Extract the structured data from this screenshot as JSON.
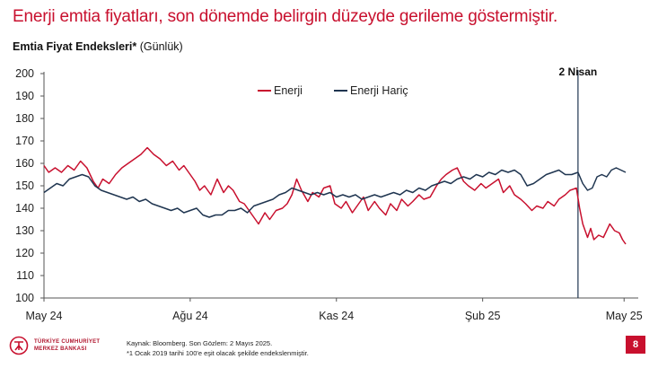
{
  "slide": {
    "title": "Enerji emtia fiyatları, son dönemde belirgin düzeyde gerileme göstermiştir.",
    "page_number": "8"
  },
  "footer": {
    "logo_line1": "TÜRKİYE CUMHURİYET",
    "logo_line2": "MERKEZ BANKASI",
    "source": "Kaynak: Bloomberg. Son Gözlem: 2 Mayıs 2025.",
    "note": "*1 Ocak 2019 tarihi 100'e eşit olacak şekilde endekslenmiştir."
  },
  "colors": {
    "brand": "#c8102e",
    "energy": "#c8102e",
    "ex_energy": "#1f3550"
  },
  "chart_data": {
    "type": "line",
    "title": "Emtia Fiyat Endeksleri*",
    "unit_label": "(Günlük)",
    "xlabel": "",
    "ylabel": "",
    "ylim": [
      100,
      200
    ],
    "yticks": [
      100,
      110,
      120,
      130,
      140,
      150,
      160,
      170,
      180,
      190,
      200
    ],
    "xlim": [
      "2024-05-01",
      "2025-05-02"
    ],
    "xticks": [
      {
        "date": "2024-05-01",
        "label": "May 24"
      },
      {
        "date": "2024-08-01",
        "label": "Ağu 24"
      },
      {
        "date": "2024-11-01",
        "label": "Kas 24"
      },
      {
        "date": "2025-02-01",
        "label": "Şub 25"
      },
      {
        "date": "2025-05-01",
        "label": "May 25"
      }
    ],
    "vline": {
      "date": "2025-04-02",
      "label": "2 Nisan"
    },
    "legend_position": "top-center",
    "grid": false,
    "series": [
      {
        "name": "Enerji",
        "color": "#c8102e",
        "points": [
          [
            "2024-05-01",
            159
          ],
          [
            "2024-05-04",
            156
          ],
          [
            "2024-05-08",
            158
          ],
          [
            "2024-05-12",
            156
          ],
          [
            "2024-05-16",
            159
          ],
          [
            "2024-05-20",
            157
          ],
          [
            "2024-05-24",
            161
          ],
          [
            "2024-05-28",
            158
          ],
          [
            "2024-06-01",
            152
          ],
          [
            "2024-06-04",
            149
          ],
          [
            "2024-06-07",
            153
          ],
          [
            "2024-06-11",
            151
          ],
          [
            "2024-06-15",
            155
          ],
          [
            "2024-06-19",
            158
          ],
          [
            "2024-06-23",
            160
          ],
          [
            "2024-06-27",
            162
          ],
          [
            "2024-07-01",
            164
          ],
          [
            "2024-07-05",
            167
          ],
          [
            "2024-07-09",
            164
          ],
          [
            "2024-07-13",
            162
          ],
          [
            "2024-07-17",
            159
          ],
          [
            "2024-07-21",
            161
          ],
          [
            "2024-07-25",
            157
          ],
          [
            "2024-07-28",
            159
          ],
          [
            "2024-08-01",
            155
          ],
          [
            "2024-08-04",
            152
          ],
          [
            "2024-08-07",
            148
          ],
          [
            "2024-08-10",
            150
          ],
          [
            "2024-08-14",
            146
          ],
          [
            "2024-08-18",
            153
          ],
          [
            "2024-08-22",
            147
          ],
          [
            "2024-08-25",
            150
          ],
          [
            "2024-08-28",
            148
          ],
          [
            "2024-09-01",
            143
          ],
          [
            "2024-09-04",
            142
          ],
          [
            "2024-09-07",
            139
          ],
          [
            "2024-09-10",
            136
          ],
          [
            "2024-09-13",
            133
          ],
          [
            "2024-09-17",
            138
          ],
          [
            "2024-09-20",
            135
          ],
          [
            "2024-09-24",
            139
          ],
          [
            "2024-09-28",
            140
          ],
          [
            "2024-10-01",
            142
          ],
          [
            "2024-10-04",
            146
          ],
          [
            "2024-10-07",
            153
          ],
          [
            "2024-10-10",
            148
          ],
          [
            "2024-10-14",
            143
          ],
          [
            "2024-10-17",
            147
          ],
          [
            "2024-10-21",
            145
          ],
          [
            "2024-10-24",
            149
          ],
          [
            "2024-10-28",
            150
          ],
          [
            "2024-10-31",
            142
          ],
          [
            "2024-11-04",
            140
          ],
          [
            "2024-11-07",
            143
          ],
          [
            "2024-11-11",
            138
          ],
          [
            "2024-11-14",
            141
          ],
          [
            "2024-11-18",
            145
          ],
          [
            "2024-11-21",
            139
          ],
          [
            "2024-11-25",
            143
          ],
          [
            "2024-11-28",
            140
          ],
          [
            "2024-12-02",
            137
          ],
          [
            "2024-12-05",
            142
          ],
          [
            "2024-12-09",
            139
          ],
          [
            "2024-12-12",
            144
          ],
          [
            "2024-12-16",
            141
          ],
          [
            "2024-12-19",
            143
          ],
          [
            "2024-12-23",
            146
          ],
          [
            "2024-12-26",
            144
          ],
          [
            "2024-12-30",
            145
          ],
          [
            "2025-01-03",
            150
          ],
          [
            "2025-01-06",
            153
          ],
          [
            "2025-01-09",
            155
          ],
          [
            "2025-01-13",
            157
          ],
          [
            "2025-01-16",
            158
          ],
          [
            "2025-01-20",
            152
          ],
          [
            "2025-01-23",
            150
          ],
          [
            "2025-01-27",
            148
          ],
          [
            "2025-01-31",
            151
          ],
          [
            "2025-02-03",
            149
          ],
          [
            "2025-02-07",
            151
          ],
          [
            "2025-02-11",
            153
          ],
          [
            "2025-02-14",
            147
          ],
          [
            "2025-02-18",
            150
          ],
          [
            "2025-02-21",
            146
          ],
          [
            "2025-02-25",
            144
          ],
          [
            "2025-02-28",
            142
          ],
          [
            "2025-03-04",
            139
          ],
          [
            "2025-03-07",
            141
          ],
          [
            "2025-03-11",
            140
          ],
          [
            "2025-03-14",
            143
          ],
          [
            "2025-03-18",
            141
          ],
          [
            "2025-03-21",
            144
          ],
          [
            "2025-03-25",
            146
          ],
          [
            "2025-03-28",
            148
          ],
          [
            "2025-04-01",
            149
          ],
          [
            "2025-04-03",
            140
          ],
          [
            "2025-04-05",
            133
          ],
          [
            "2025-04-08",
            127
          ],
          [
            "2025-04-10",
            131
          ],
          [
            "2025-04-12",
            126
          ],
          [
            "2025-04-15",
            128
          ],
          [
            "2025-04-18",
            127
          ],
          [
            "2025-04-22",
            133
          ],
          [
            "2025-04-25",
            130
          ],
          [
            "2025-04-28",
            129
          ],
          [
            "2025-04-30",
            126
          ],
          [
            "2025-05-02",
            124
          ]
        ]
      },
      {
        "name": "Enerji Hariç",
        "color": "#1f3550",
        "points": [
          [
            "2024-05-01",
            147
          ],
          [
            "2024-05-05",
            149
          ],
          [
            "2024-05-09",
            151
          ],
          [
            "2024-05-13",
            150
          ],
          [
            "2024-05-17",
            153
          ],
          [
            "2024-05-21",
            154
          ],
          [
            "2024-05-25",
            155
          ],
          [
            "2024-05-29",
            154
          ],
          [
            "2024-06-02",
            150
          ],
          [
            "2024-06-06",
            148
          ],
          [
            "2024-06-10",
            147
          ],
          [
            "2024-06-14",
            146
          ],
          [
            "2024-06-18",
            145
          ],
          [
            "2024-06-22",
            144
          ],
          [
            "2024-06-26",
            145
          ],
          [
            "2024-06-30",
            143
          ],
          [
            "2024-07-04",
            144
          ],
          [
            "2024-07-08",
            142
          ],
          [
            "2024-07-12",
            141
          ],
          [
            "2024-07-16",
            140
          ],
          [
            "2024-07-20",
            139
          ],
          [
            "2024-07-24",
            140
          ],
          [
            "2024-07-28",
            138
          ],
          [
            "2024-08-01",
            139
          ],
          [
            "2024-08-05",
            140
          ],
          [
            "2024-08-09",
            137
          ],
          [
            "2024-08-13",
            136
          ],
          [
            "2024-08-17",
            137
          ],
          [
            "2024-08-21",
            137
          ],
          [
            "2024-08-25",
            139
          ],
          [
            "2024-08-29",
            139
          ],
          [
            "2024-09-02",
            140
          ],
          [
            "2024-09-06",
            138
          ],
          [
            "2024-09-10",
            141
          ],
          [
            "2024-09-14",
            142
          ],
          [
            "2024-09-18",
            143
          ],
          [
            "2024-09-22",
            144
          ],
          [
            "2024-09-26",
            146
          ],
          [
            "2024-09-30",
            147
          ],
          [
            "2024-10-04",
            149
          ],
          [
            "2024-10-08",
            148
          ],
          [
            "2024-10-12",
            147
          ],
          [
            "2024-10-16",
            146
          ],
          [
            "2024-10-20",
            147
          ],
          [
            "2024-10-24",
            146
          ],
          [
            "2024-10-28",
            147
          ],
          [
            "2024-11-01",
            145
          ],
          [
            "2024-11-05",
            146
          ],
          [
            "2024-11-09",
            145
          ],
          [
            "2024-11-13",
            146
          ],
          [
            "2024-11-17",
            144
          ],
          [
            "2024-11-21",
            145
          ],
          [
            "2024-11-25",
            146
          ],
          [
            "2024-11-29",
            145
          ],
          [
            "2024-12-03",
            146
          ],
          [
            "2024-12-07",
            147
          ],
          [
            "2024-12-11",
            146
          ],
          [
            "2024-12-15",
            148
          ],
          [
            "2024-12-19",
            147
          ],
          [
            "2024-12-23",
            149
          ],
          [
            "2024-12-27",
            148
          ],
          [
            "2024-12-31",
            150
          ],
          [
            "2025-01-04",
            151
          ],
          [
            "2025-01-08",
            152
          ],
          [
            "2025-01-12",
            151
          ],
          [
            "2025-01-16",
            153
          ],
          [
            "2025-01-20",
            154
          ],
          [
            "2025-01-24",
            153
          ],
          [
            "2025-01-28",
            155
          ],
          [
            "2025-02-01",
            154
          ],
          [
            "2025-02-05",
            156
          ],
          [
            "2025-02-09",
            155
          ],
          [
            "2025-02-13",
            157
          ],
          [
            "2025-02-17",
            156
          ],
          [
            "2025-02-21",
            157
          ],
          [
            "2025-02-25",
            155
          ],
          [
            "2025-03-01",
            150
          ],
          [
            "2025-03-05",
            151
          ],
          [
            "2025-03-09",
            153
          ],
          [
            "2025-03-13",
            155
          ],
          [
            "2025-03-17",
            156
          ],
          [
            "2025-03-21",
            157
          ],
          [
            "2025-03-25",
            155
          ],
          [
            "2025-03-29",
            155
          ],
          [
            "2025-04-02",
            156
          ],
          [
            "2025-04-05",
            151
          ],
          [
            "2025-04-08",
            148
          ],
          [
            "2025-04-11",
            149
          ],
          [
            "2025-04-14",
            154
          ],
          [
            "2025-04-17",
            155
          ],
          [
            "2025-04-20",
            154
          ],
          [
            "2025-04-23",
            157
          ],
          [
            "2025-04-26",
            158
          ],
          [
            "2025-04-29",
            157
          ],
          [
            "2025-05-02",
            156
          ]
        ]
      }
    ]
  }
}
